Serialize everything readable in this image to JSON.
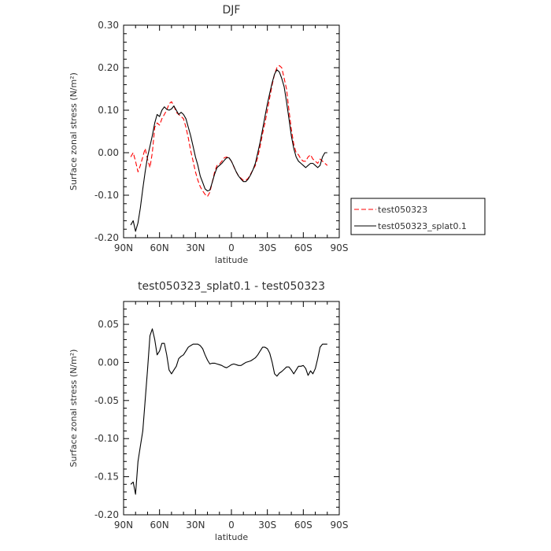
{
  "chart_data": [
    {
      "type": "line",
      "title": "DJF",
      "xlabel": "latitude",
      "ylabel": "Surface zonal stress (N/m²)",
      "xlim": [
        90,
        -90
      ],
      "ylim": [
        -0.2,
        0.3
      ],
      "x_ticks": [
        90,
        60,
        30,
        0,
        -30,
        -60,
        -90
      ],
      "x_tick_labels": [
        "90N",
        "60N",
        "30N",
        "0",
        "30S",
        "60S",
        "90S"
      ],
      "y_ticks": [
        -0.2,
        -0.1,
        0.0,
        0.1,
        0.2,
        0.3
      ],
      "y_tick_labels": [
        "-0.20",
        "-0.10",
        "0.00",
        "0.10",
        "0.20",
        "0.30"
      ],
      "grid": false,
      "legend_position": "outside-right",
      "series": [
        {
          "name": "test050323",
          "color": "#ff0000",
          "dash": "dashed",
          "x": [
            84,
            82,
            80,
            78,
            76,
            74,
            72,
            70,
            68,
            66,
            64,
            62,
            60,
            58,
            56,
            54,
            52,
            50,
            48,
            46,
            44,
            42,
            40,
            38,
            36,
            34,
            32,
            30,
            28,
            26,
            24,
            22,
            20,
            18,
            16,
            14,
            12,
            10,
            8,
            6,
            4,
            2,
            0,
            -2,
            -4,
            -6,
            -8,
            -10,
            -12,
            -14,
            -16,
            -18,
            -20,
            -22,
            -24,
            -26,
            -28,
            -30,
            -32,
            -34,
            -36,
            -38,
            -40,
            -42,
            -44,
            -46,
            -48,
            -50,
            -52,
            -54,
            -56,
            -58,
            -60,
            -62,
            -64,
            -66,
            -68,
            -70,
            -72,
            -74,
            -76,
            -78,
            -80
          ],
          "y": [
            -0.01,
            0.0,
            -0.02,
            -0.045,
            -0.03,
            -0.01,
            0.01,
            -0.015,
            -0.035,
            0.0,
            0.06,
            0.07,
            0.065,
            0.08,
            0.09,
            0.1,
            0.115,
            0.12,
            0.11,
            0.095,
            0.09,
            0.085,
            0.08,
            0.06,
            0.035,
            0.005,
            -0.02,
            -0.045,
            -0.065,
            -0.08,
            -0.09,
            -0.098,
            -0.103,
            -0.093,
            -0.07,
            -0.045,
            -0.03,
            -0.027,
            -0.02,
            -0.012,
            -0.01,
            -0.013,
            -0.02,
            -0.033,
            -0.045,
            -0.055,
            -0.06,
            -0.065,
            -0.065,
            -0.06,
            -0.05,
            -0.04,
            -0.03,
            -0.01,
            0.015,
            0.045,
            0.07,
            0.1,
            0.13,
            0.16,
            0.185,
            0.2,
            0.205,
            0.2,
            0.175,
            0.15,
            0.1,
            0.055,
            0.02,
            0.0,
            -0.005,
            -0.015,
            -0.02,
            -0.02,
            -0.01,
            -0.005,
            -0.015,
            -0.02,
            -0.025,
            -0.015,
            -0.02,
            -0.025,
            -0.03
          ]
        },
        {
          "name": "test050323_splat0.1",
          "color": "#000000",
          "dash": "solid",
          "x": [
            84,
            82,
            80,
            78,
            76,
            74,
            72,
            70,
            68,
            66,
            64,
            62,
            60,
            58,
            56,
            54,
            52,
            50,
            48,
            46,
            44,
            42,
            40,
            38,
            36,
            34,
            32,
            30,
            28,
            26,
            24,
            22,
            20,
            18,
            16,
            14,
            12,
            10,
            8,
            6,
            4,
            2,
            0,
            -2,
            -4,
            -6,
            -8,
            -10,
            -12,
            -14,
            -16,
            -18,
            -20,
            -22,
            -24,
            -26,
            -28,
            -30,
            -32,
            -34,
            -36,
            -38,
            -40,
            -42,
            -44,
            -46,
            -48,
            -50,
            -52,
            -54,
            -56,
            -58,
            -60,
            -62,
            -64,
            -66,
            -68,
            -70,
            -72,
            -74,
            -76,
            -78,
            -80
          ],
          "y": [
            -0.17,
            -0.16,
            -0.185,
            -0.165,
            -0.13,
            -0.085,
            -0.045,
            -0.01,
            0.015,
            0.04,
            0.07,
            0.09,
            0.085,
            0.1,
            0.108,
            0.102,
            0.1,
            0.103,
            0.11,
            0.1,
            0.09,
            0.095,
            0.09,
            0.08,
            0.06,
            0.04,
            0.015,
            -0.01,
            -0.03,
            -0.055,
            -0.07,
            -0.085,
            -0.09,
            -0.088,
            -0.07,
            -0.05,
            -0.035,
            -0.03,
            -0.025,
            -0.018,
            -0.012,
            -0.012,
            -0.02,
            -0.032,
            -0.045,
            -0.055,
            -0.062,
            -0.068,
            -0.068,
            -0.062,
            -0.052,
            -0.04,
            -0.025,
            0.0,
            0.025,
            0.055,
            0.085,
            0.115,
            0.14,
            0.165,
            0.185,
            0.195,
            0.19,
            0.175,
            0.155,
            0.12,
            0.08,
            0.04,
            0.01,
            -0.01,
            -0.02,
            -0.025,
            -0.03,
            -0.035,
            -0.03,
            -0.025,
            -0.025,
            -0.03,
            -0.035,
            -0.03,
            -0.01,
            0.0,
            0.0
          ]
        }
      ]
    },
    {
      "type": "line",
      "title": "test050323_splat0.1 - test050323",
      "xlabel": "latitude",
      "ylabel": "Surface zonal stress (N/m²)",
      "xlim": [
        90,
        -90
      ],
      "ylim": [
        -0.2,
        0.08
      ],
      "x_ticks": [
        90,
        60,
        30,
        0,
        -30,
        -60,
        -90
      ],
      "x_tick_labels": [
        "90N",
        "60N",
        "30N",
        "0",
        "30S",
        "60S",
        "90S"
      ],
      "y_ticks": [
        -0.2,
        -0.15,
        -0.1,
        -0.05,
        0.0,
        0.05
      ],
      "y_tick_labels": [
        "-0.20",
        "-0.15",
        "-0.10",
        "-0.05",
        "0.00",
        "0.05"
      ],
      "grid": false,
      "series": [
        {
          "color": "#000000",
          "dash": "solid",
          "x": [
            84,
            82,
            80,
            78,
            76,
            74,
            72,
            70,
            68,
            66,
            64,
            62,
            60,
            58,
            56,
            54,
            52,
            50,
            48,
            46,
            44,
            42,
            40,
            38,
            36,
            34,
            32,
            30,
            28,
            26,
            24,
            22,
            20,
            18,
            16,
            14,
            12,
            10,
            8,
            6,
            4,
            2,
            0,
            -2,
            -4,
            -6,
            -8,
            -10,
            -12,
            -14,
            -16,
            -18,
            -20,
            -22,
            -24,
            -26,
            -28,
            -30,
            -32,
            -34,
            -36,
            -38,
            -40,
            -42,
            -44,
            -46,
            -48,
            -50,
            -52,
            -54,
            -56,
            -58,
            -60,
            -62,
            -64,
            -66,
            -68,
            -70,
            -72,
            -74,
            -76,
            -78,
            -80
          ],
          "y": [
            -0.16,
            -0.157,
            -0.173,
            -0.13,
            -0.11,
            -0.09,
            -0.05,
            -0.01,
            0.035,
            0.044,
            0.03,
            0.01,
            0.015,
            0.025,
            0.025,
            0.01,
            -0.01,
            -0.015,
            -0.01,
            -0.005,
            0.005,
            0.008,
            0.01,
            0.015,
            0.02,
            0.022,
            0.024,
            0.024,
            0.024,
            0.022,
            0.018,
            0.01,
            0.003,
            -0.002,
            -0.001,
            -0.001,
            -0.002,
            -0.003,
            -0.004,
            -0.006,
            -0.007,
            -0.005,
            -0.003,
            -0.002,
            -0.003,
            -0.004,
            -0.004,
            -0.002,
            0.0,
            0.001,
            0.002,
            0.004,
            0.006,
            0.01,
            0.015,
            0.02,
            0.02,
            0.018,
            0.012,
            0.0,
            -0.015,
            -0.018,
            -0.014,
            -0.012,
            -0.009,
            -0.006,
            -0.006,
            -0.01,
            -0.015,
            -0.01,
            -0.005,
            -0.005,
            -0.004,
            -0.008,
            -0.017,
            -0.011,
            -0.015,
            -0.008,
            0.005,
            0.02,
            0.024,
            0.024,
            0.024
          ]
        }
      ]
    }
  ]
}
